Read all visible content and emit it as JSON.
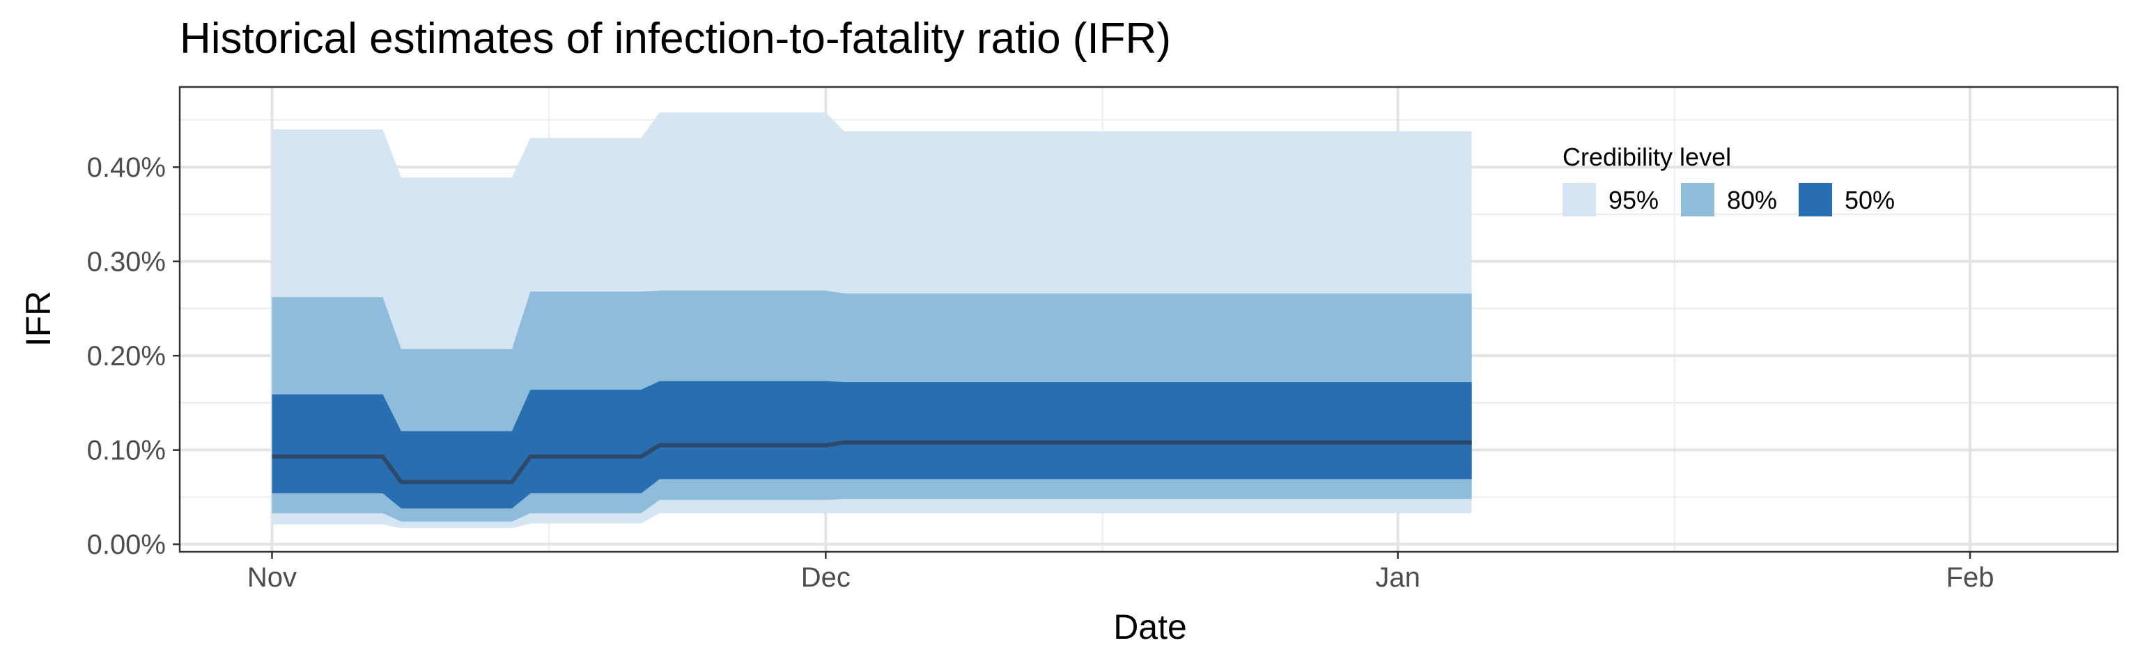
{
  "chart_data": {
    "type": "area",
    "title": "Historical estimates of infection-to-fatality ratio (IFR)",
    "xlabel": "Date",
    "ylabel": "IFR",
    "x_ticks": [
      {
        "label": "Nov",
        "date": "2020-11-01"
      },
      {
        "label": "Dec",
        "date": "2020-12-01"
      },
      {
        "label": "Jan",
        "date": "2021-01-01"
      },
      {
        "label": "Feb",
        "date": "2021-02-01"
      }
    ],
    "x_minor_ticks": [
      "2020-11-16",
      "2020-12-16",
      "2021-01-16"
    ],
    "xlim": [
      "2020-10-27",
      "2021-02-09"
    ],
    "y_ticks": [
      {
        "label": "0.00%",
        "value": 0.0
      },
      {
        "label": "0.10%",
        "value": 0.1
      },
      {
        "label": "0.20%",
        "value": 0.2
      },
      {
        "label": "0.30%",
        "value": 0.3
      },
      {
        "label": "0.40%",
        "value": 0.4
      }
    ],
    "y_minor_ticks": [
      0.05,
      0.15,
      0.25,
      0.35,
      0.45
    ],
    "ylim": [
      -0.008,
      0.485
    ],
    "y_unit": "%",
    "grid": true,
    "legend": {
      "title": "Credibility level",
      "position": "top-right",
      "items": [
        {
          "label": "95%",
          "color": "#d6e5f4"
        },
        {
          "label": "80%",
          "color": "#8fbcdb"
        },
        {
          "label": "50%",
          "color": "#2a6eb2"
        }
      ]
    },
    "median_color": "#2d4a6b",
    "points": [
      {
        "date": "2020-11-01",
        "median": 0.093,
        "lo50": 0.054,
        "hi50": 0.159,
        "lo80": 0.033,
        "hi80": 0.262,
        "lo95": 0.021,
        "hi95": 0.44
      },
      {
        "date": "2020-11-07",
        "median": 0.093,
        "lo50": 0.054,
        "hi50": 0.159,
        "lo80": 0.033,
        "hi80": 0.262,
        "lo95": 0.021,
        "hi95": 0.44
      },
      {
        "date": "2020-11-08",
        "median": 0.066,
        "lo50": 0.038,
        "hi50": 0.12,
        "lo80": 0.024,
        "hi80": 0.207,
        "lo95": 0.017,
        "hi95": 0.389
      },
      {
        "date": "2020-11-14",
        "median": 0.066,
        "lo50": 0.038,
        "hi50": 0.12,
        "lo80": 0.024,
        "hi80": 0.207,
        "lo95": 0.017,
        "hi95": 0.389
      },
      {
        "date": "2020-11-15",
        "median": 0.093,
        "lo50": 0.054,
        "hi50": 0.164,
        "lo80": 0.033,
        "hi80": 0.268,
        "lo95": 0.022,
        "hi95": 0.431
      },
      {
        "date": "2020-11-21",
        "median": 0.093,
        "lo50": 0.054,
        "hi50": 0.164,
        "lo80": 0.033,
        "hi80": 0.268,
        "lo95": 0.022,
        "hi95": 0.431
      },
      {
        "date": "2020-11-22",
        "median": 0.105,
        "lo50": 0.069,
        "hi50": 0.173,
        "lo80": 0.047,
        "hi80": 0.269,
        "lo95": 0.033,
        "hi95": 0.458
      },
      {
        "date": "2020-12-01",
        "median": 0.105,
        "lo50": 0.069,
        "hi50": 0.173,
        "lo80": 0.047,
        "hi80": 0.269,
        "lo95": 0.033,
        "hi95": 0.458
      },
      {
        "date": "2020-12-02",
        "median": 0.108,
        "lo50": 0.069,
        "hi50": 0.172,
        "lo80": 0.048,
        "hi80": 0.266,
        "lo95": 0.033,
        "hi95": 0.438
      },
      {
        "date": "2021-01-05",
        "median": 0.108,
        "lo50": 0.069,
        "hi50": 0.172,
        "lo80": 0.048,
        "hi80": 0.266,
        "lo95": 0.033,
        "hi95": 0.438
      }
    ]
  }
}
